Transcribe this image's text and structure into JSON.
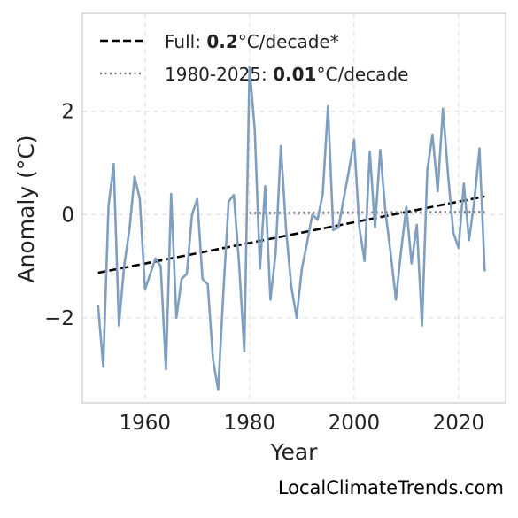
{
  "chart_data": {
    "type": "line",
    "title": "",
    "xlabel": "Year",
    "ylabel": "Anomaly (°C)",
    "xlim": [
      1948,
      2029
    ],
    "ylim": [
      -3.65,
      3.9
    ],
    "xticks": [
      1960,
      1980,
      2000,
      2020
    ],
    "yticks": [
      -2,
      0,
      2
    ],
    "ytick_labels": [
      "−2",
      "0",
      "2"
    ],
    "grid": true,
    "legend_position": "top-left",
    "series": [
      {
        "color": "#7f9fc1",
        "x": [
          1951,
          1952,
          1953,
          1954,
          1955,
          1956,
          1957,
          1958,
          1959,
          1960,
          1961,
          1962,
          1963,
          1964,
          1965,
          1966,
          1967,
          1968,
          1969,
          1970,
          1971,
          1972,
          1973,
          1974,
          1975,
          1976,
          1977,
          1978,
          1979,
          1980,
          1981,
          1982,
          1983,
          1984,
          1985,
          1986,
          1987,
          1988,
          1989,
          1990,
          1991,
          1992,
          1993,
          1994,
          1995,
          1996,
          1997,
          1998,
          1999,
          2000,
          2001,
          2002,
          2003,
          2004,
          2005,
          2006,
          2007,
          2008,
          2009,
          2010,
          2011,
          2012,
          2013,
          2014,
          2015,
          2016,
          2017,
          2018,
          2019,
          2020,
          2021,
          2022,
          2023,
          2024,
          2025
        ],
        "y": [
          -1.75,
          -2.95,
          0.15,
          0.98,
          -2.15,
          -1.0,
          -0.3,
          0.73,
          0.3,
          -1.45,
          -1.15,
          -0.85,
          -1.0,
          -3.0,
          0.4,
          -2.0,
          -1.25,
          -1.15,
          0.0,
          0.3,
          -1.25,
          -1.35,
          -2.8,
          -3.4,
          -1.5,
          0.25,
          0.38,
          -0.95,
          -2.65,
          2.85,
          1.65,
          -1.05,
          0.55,
          -1.65,
          -0.75,
          1.33,
          -0.3,
          -1.4,
          -2.0,
          -1.05,
          -0.55,
          0.0,
          -0.1,
          0.4,
          2.1,
          -0.3,
          -0.25,
          0.3,
          0.85,
          1.45,
          -0.25,
          -0.9,
          1.22,
          -0.25,
          1.25,
          0.05,
          -0.75,
          -1.65,
          -0.7,
          0.15,
          -0.95,
          -0.2,
          -2.15,
          0.85,
          1.55,
          0.45,
          2.05,
          0.75,
          -0.35,
          -0.65,
          0.6,
          -0.5,
          0.25,
          1.28,
          -1.1
        ]
      }
    ],
    "trends": [
      {
        "name": "Full",
        "value": "0.2",
        "unit": "°C/decade*",
        "style": "dashed",
        "color": "#000000",
        "x": [
          1951,
          2025
        ],
        "y": [
          -1.13,
          0.35
        ]
      },
      {
        "name": "1980-2025",
        "value": "0.01",
        "unit": "°C/decade",
        "style": "dotted",
        "color": "#7a7a7a",
        "x": [
          1980,
          2025
        ],
        "y": [
          0.03,
          0.05
        ]
      }
    ]
  },
  "footer": {
    "text": "LocalClimateTrends.com"
  }
}
